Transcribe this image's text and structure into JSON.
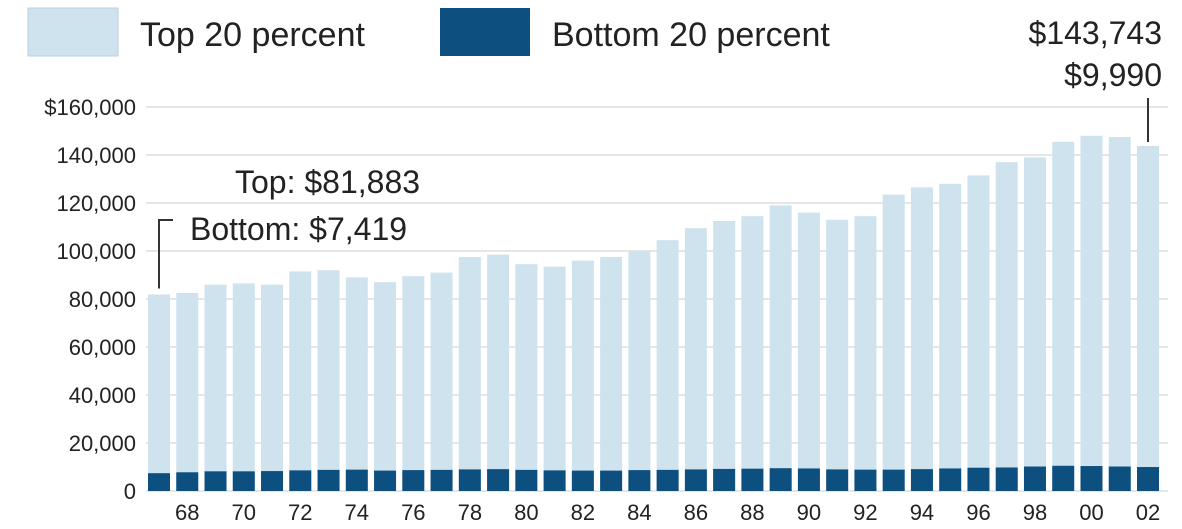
{
  "chart_data": {
    "type": "bar",
    "stacked": false,
    "x": [
      1967,
      1968,
      1969,
      1970,
      1971,
      1972,
      1973,
      1974,
      1975,
      1976,
      1977,
      1978,
      1979,
      1980,
      1981,
      1982,
      1983,
      1984,
      1985,
      1986,
      1987,
      1988,
      1989,
      1990,
      1991,
      1992,
      1993,
      1994,
      1995,
      1996,
      1997,
      1998,
      1999,
      2000,
      2001,
      2002
    ],
    "x_tick_labels": [
      "68",
      "70",
      "72",
      "74",
      "76",
      "78",
      "80",
      "82",
      "84",
      "86",
      "88",
      "90",
      "92",
      "94",
      "96",
      "98",
      "00",
      "02"
    ],
    "x_tick_years": [
      1968,
      1970,
      1972,
      1974,
      1976,
      1978,
      1980,
      1982,
      1984,
      1986,
      1988,
      1990,
      1992,
      1994,
      1996,
      1998,
      2000,
      2002
    ],
    "series": [
      {
        "name": "Top 20 percent",
        "color": "#cfe3ef",
        "values": [
          81883,
          82500,
          86000,
          86500,
          86000,
          91500,
          92000,
          89000,
          87000,
          89500,
          91000,
          97500,
          98500,
          94500,
          93500,
          96000,
          97500,
          100000,
          104500,
          109500,
          112500,
          114500,
          119000,
          116000,
          113000,
          114500,
          123500,
          126500,
          128000,
          131500,
          137000,
          139000,
          145500,
          148000,
          147500,
          143743
        ]
      },
      {
        "name": "Bottom 20 percent",
        "color": "#0d4f7f",
        "values": [
          7419,
          7800,
          8200,
          8200,
          8300,
          8600,
          8800,
          8900,
          8500,
          8700,
          8800,
          9000,
          9100,
          8800,
          8600,
          8500,
          8500,
          8700,
          8800,
          9000,
          9200,
          9300,
          9500,
          9400,
          9000,
          8900,
          8900,
          9100,
          9400,
          9700,
          9800,
          10200,
          10500,
          10400,
          10200,
          9990
        ]
      }
    ],
    "y_ticks": [
      0,
      20000,
      40000,
      60000,
      80000,
      100000,
      120000,
      140000,
      160000
    ],
    "y_tick_labels": [
      "0",
      "20,000",
      "40,000",
      "60,000",
      "80,000",
      "100,000",
      "120,000",
      "140,000",
      "$160,000"
    ],
    "ylim": [
      0,
      160000
    ],
    "grid": true,
    "legend": {
      "position": "top-left"
    },
    "annotations": {
      "start_top": "Top: $81,883",
      "start_bottom": "Bottom: $7,419",
      "end_top": "$143,743",
      "end_bottom": "$9,990"
    }
  }
}
